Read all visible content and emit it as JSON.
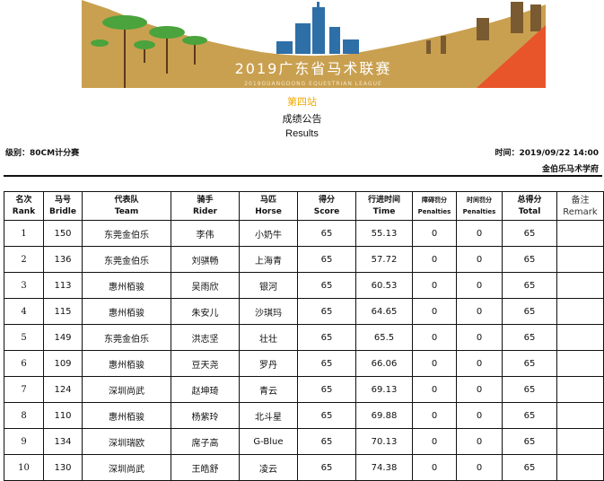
{
  "banner": {
    "title": "2019广东省马术联赛",
    "subtitle": "2019GUANGDONG EQUESTRIAN LEAGUE",
    "colors": {
      "ground": "#c9a050",
      "tower": "#2f6fa8",
      "accent": "#e8552a"
    }
  },
  "header": {
    "stage": "第四站",
    "announcement": "成绩公告",
    "results": "Results",
    "class": "级别：80CM计分赛",
    "time": "时间：2019/09/22 14:00",
    "organizer": "金伯乐马术学府"
  },
  "table": {
    "columns": [
      [
        "名次Rank",
        ""
      ],
      [
        "马号",
        "Bridle"
      ],
      [
        "代表队",
        "Team"
      ],
      [
        "骑手",
        "Rider"
      ],
      [
        "马匹",
        "Horse"
      ],
      [
        "得分",
        "Score"
      ],
      [
        "行进时间",
        "Time"
      ],
      [
        "障碍罚分",
        "Penalties"
      ],
      [
        "时间罚分",
        "Penalties"
      ],
      [
        "总得分",
        "Total"
      ],
      [
        "备注",
        "Remark"
      ]
    ],
    "rows": [
      [
        "1",
        "150",
        "东莞金伯乐",
        "李伟",
        "小奶牛",
        "65",
        "55.13",
        "0",
        "0",
        "65",
        ""
      ],
      [
        "2",
        "136",
        "东莞金伯乐",
        "刘骐畅",
        "上海青",
        "65",
        "57.72",
        "0",
        "0",
        "65",
        ""
      ],
      [
        "3",
        "113",
        "惠州栢骏",
        "吴雨欣",
        "银河",
        "65",
        "60.53",
        "0",
        "0",
        "65",
        ""
      ],
      [
        "4",
        "115",
        "惠州栢骏",
        "朱安儿",
        "沙琪玛",
        "65",
        "64.65",
        "0",
        "0",
        "65",
        ""
      ],
      [
        "5",
        "149",
        "东莞金伯乐",
        "洪志坚",
        "壮壮",
        "65",
        "65.5",
        "0",
        "0",
        "65",
        ""
      ],
      [
        "6",
        "109",
        "惠州栢骏",
        "豆天尧",
        "罗丹",
        "65",
        "66.06",
        "0",
        "0",
        "65",
        ""
      ],
      [
        "7",
        "124",
        "深圳尚武",
        "赵坤琦",
        "青云",
        "65",
        "69.13",
        "0",
        "0",
        "65",
        ""
      ],
      [
        "8",
        "110",
        "惠州栢骏",
        "杨紫玲",
        "北斗星",
        "65",
        "69.88",
        "0",
        "0",
        "65",
        ""
      ],
      [
        "9",
        "134",
        "深圳瑞欧",
        "席子高",
        "G-Blue",
        "65",
        "70.13",
        "0",
        "0",
        "65",
        ""
      ],
      [
        "10",
        "130",
        "深圳尚武",
        "王皓舒",
        "凌云",
        "65",
        "74.38",
        "0",
        "0",
        "65",
        ""
      ]
    ]
  }
}
